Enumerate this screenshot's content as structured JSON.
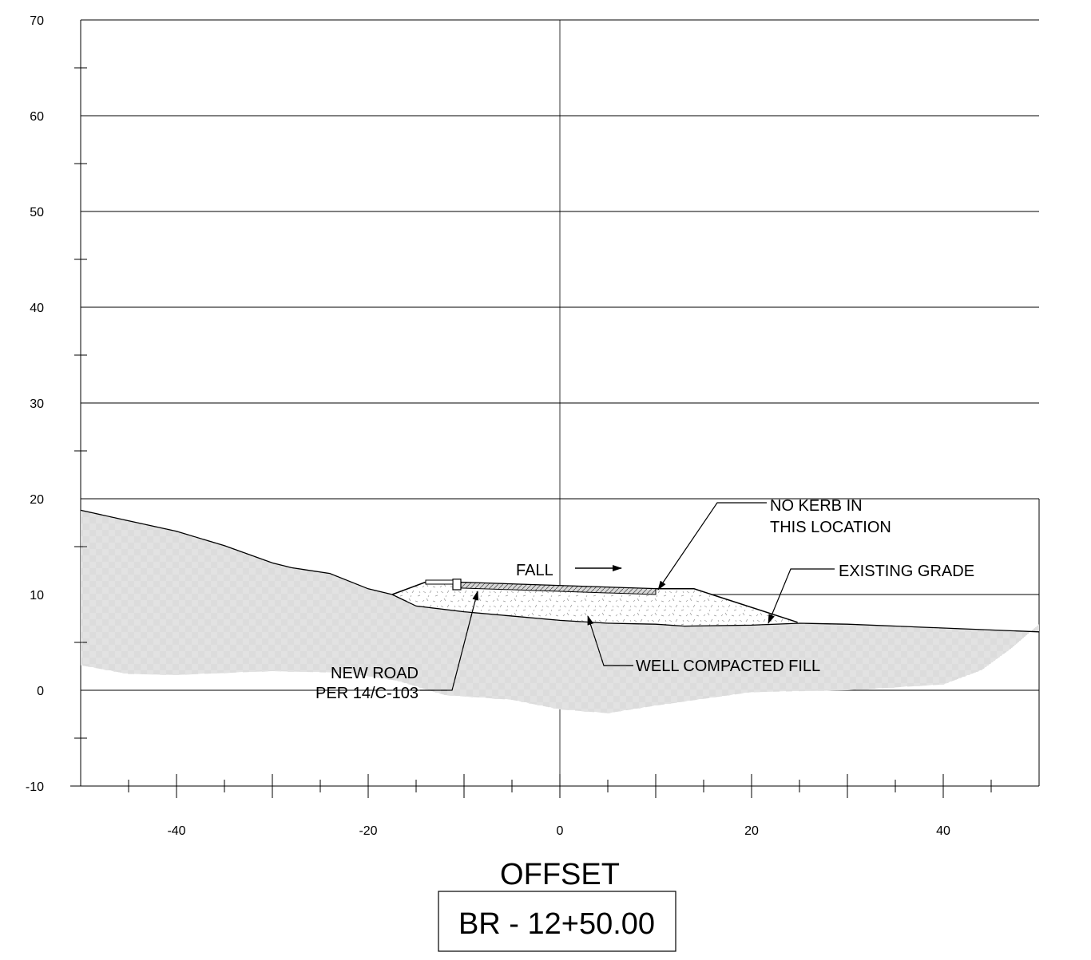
{
  "chart_data": {
    "type": "line",
    "title": "",
    "xlabel": "OFFSET",
    "ylabel": "",
    "xlim": [
      -50,
      50
    ],
    "ylim": [
      -10,
      70
    ],
    "x_ticks": [
      -40,
      -20,
      0,
      20,
      40
    ],
    "y_ticks": [
      -10,
      0,
      10,
      20,
      30,
      40,
      50,
      60,
      70
    ],
    "grid": true,
    "series": [
      {
        "name": "EXISTING GRADE",
        "x": [
          -50,
          -45,
          -40,
          -35,
          -30,
          -28,
          -24,
          -20,
          -17.5,
          -15,
          -10,
          0,
          5,
          10,
          13,
          20,
          25,
          30,
          40,
          50
        ],
        "y": [
          18.8,
          17.7,
          16.6,
          15.1,
          13.3,
          12.8,
          12.2,
          10.6,
          10.0,
          8.8,
          8.2,
          7.3,
          7.0,
          6.9,
          6.7,
          6.8,
          7.0,
          6.9,
          6.5,
          6.1
        ]
      },
      {
        "name": "NEW ROAD PER 14/C-103",
        "x": [
          -17.5,
          -14,
          -11,
          10,
          14,
          24.8
        ],
        "y": [
          10.0,
          11.3,
          11.3,
          10.6,
          10.6,
          7.1
        ]
      }
    ],
    "annotations": [
      {
        "text": "FALL"
      },
      {
        "lines": [
          "NO KERB IN",
          "THIS LOCATION"
        ]
      },
      {
        "text": "EXISTING GRADE"
      },
      {
        "lines": [
          "NEW ROAD",
          "PER 14/C-103"
        ]
      },
      {
        "text": "WELL COMPACTED FILL"
      }
    ],
    "station_label": "BR - 12+50.00"
  }
}
